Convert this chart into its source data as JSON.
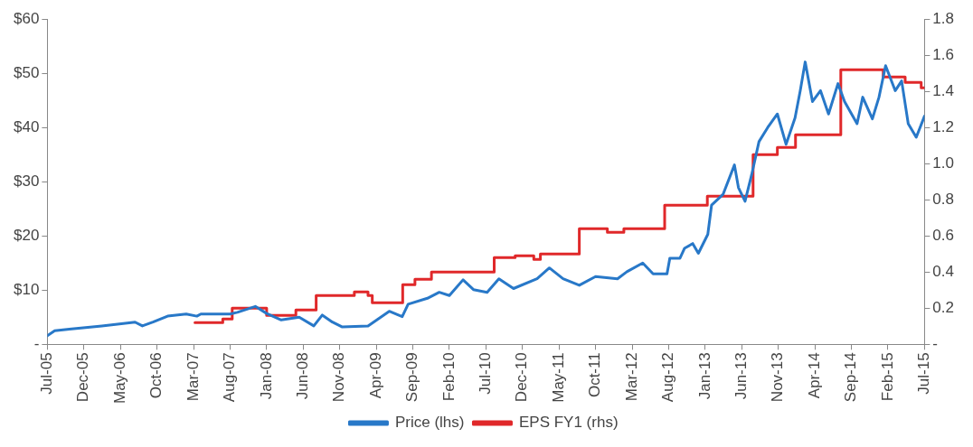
{
  "chart_data": {
    "type": "line",
    "xlim": [
      "2005-07",
      "2015-07"
    ],
    "xticks": [
      {
        "value": "2005-07",
        "label": "Jul-05"
      },
      {
        "value": "2005-12",
        "label": "Dec-05"
      },
      {
        "value": "2006-05",
        "label": "May-06"
      },
      {
        "value": "2006-10",
        "label": "Oct-06"
      },
      {
        "value": "2007-03",
        "label": "Mar-07"
      },
      {
        "value": "2007-08",
        "label": "Aug-07"
      },
      {
        "value": "2008-01",
        "label": "Jan-08"
      },
      {
        "value": "2008-06",
        "label": "Jun-08"
      },
      {
        "value": "2008-11",
        "label": "Nov-08"
      },
      {
        "value": "2009-04",
        "label": "Apr-09"
      },
      {
        "value": "2009-09",
        "label": "Sep-09"
      },
      {
        "value": "2010-02",
        "label": "Feb-10"
      },
      {
        "value": "2010-07",
        "label": "Jul-10"
      },
      {
        "value": "2010-12",
        "label": "Dec-10"
      },
      {
        "value": "2011-05",
        "label": "May-11"
      },
      {
        "value": "2011-10",
        "label": "Oct-11"
      },
      {
        "value": "2012-03",
        "label": "Mar-12"
      },
      {
        "value": "2012-08",
        "label": "Aug-12"
      },
      {
        "value": "2013-01",
        "label": "Jan-13"
      },
      {
        "value": "2013-06",
        "label": "Jun-13"
      },
      {
        "value": "2013-11",
        "label": "Nov-13"
      },
      {
        "value": "2014-04",
        "label": "Apr-14"
      },
      {
        "value": "2014-09",
        "label": "Sep-14"
      },
      {
        "value": "2015-02",
        "label": "Feb-15"
      },
      {
        "value": "2015-07",
        "label": "Jul-15"
      }
    ],
    "ylim": [
      0,
      60
    ],
    "yticks": [
      {
        "value": 0,
        "label": "-"
      },
      {
        "value": 10,
        "label": "$10"
      },
      {
        "value": 20,
        "label": "$20"
      },
      {
        "value": 30,
        "label": "$30"
      },
      {
        "value": 40,
        "label": "$40"
      },
      {
        "value": 50,
        "label": "$50"
      },
      {
        "value": 60,
        "label": "$60"
      }
    ],
    "y2lim": [
      0,
      1.8
    ],
    "y2ticks": [
      {
        "value": 0,
        "label": "-"
      },
      0.2,
      0.4,
      0.6,
      0.8,
      {
        "value": 1,
        "label": "1.0"
      },
      1.2,
      1.4,
      1.6,
      1.8
    ],
    "grid": false,
    "legend": "bottom",
    "marker": "none",
    "line_style": "solid",
    "series": [
      {
        "name": "Price (lhs)",
        "type": "line",
        "color": "#2878c8",
        "x": [
          "2005-07",
          "2005-08",
          "2005-10",
          "2006-02-15",
          "2006-07",
          "2006-08",
          "2006-09-15",
          "2006-11-15",
          "2007-02",
          "2007-03-15",
          "2007-04",
          "2007-08",
          "2007-09",
          "2007-11-15",
          "2008-01",
          "2008-03",
          "2008-05-15",
          "2008-07-15",
          "2008-08-20",
          "2008-10",
          "2008-11-12",
          "2009-02-28",
          "2009-05-25",
          "2009-07-18",
          "2009-08-12",
          "2009-11",
          "2009-12-20",
          "2010-02",
          "2010-03-28",
          "2010-05-10",
          "2010-07-06",
          "2010-08-25",
          "2010-10-25",
          "2011-02",
          "2011-03-22",
          "2011-05-18",
          "2011-07-25",
          "2011-10",
          "2012-01",
          "2012-02-10",
          "2012-04-15",
          "2012-05-28",
          "2012-07-25",
          "2012-08-06",
          "2012-09-18",
          "2012-10-06",
          "2012-11-10",
          "2012-12-03",
          "2013-01-12",
          "2013-01-28",
          "2013-03-15",
          "2013-05",
          "2013-05-18",
          "2013-06-15",
          "2013-07-12",
          "2013-08-12",
          "2013-09-18",
          "2013-10-28",
          "2013-12-03",
          "2014-01-10",
          "2014-02",
          "2014-02-22",
          "2014-03-22",
          "2014-04-25",
          "2014-05-28",
          "2014-07-06",
          "2014-08-03",
          "2014-09-25",
          "2014-10-18",
          "2014-11-28",
          "2014-12-25",
          "2015-01-22",
          "2015-03",
          "2015-03-28",
          "2015-04-25",
          "2015-05-28",
          "2015-07"
        ],
        "values": [
          1.6,
          2.5,
          2.8,
          3.4,
          4.1,
          3.4,
          4.1,
          5.2,
          5.6,
          5.2,
          5.6,
          5.6,
          5.9,
          7.0,
          5.7,
          4.5,
          5.0,
          3.4,
          5.4,
          4.1,
          3.2,
          3.4,
          6.1,
          5.1,
          7.4,
          8.5,
          9.6,
          9.0,
          11.9,
          10.1,
          9.6,
          12.1,
          10.3,
          12.1,
          14.1,
          12.1,
          10.9,
          12.5,
          12.1,
          13.4,
          15.0,
          13.0,
          13.0,
          15.9,
          15.9,
          17.7,
          18.6,
          16.8,
          20.3,
          25.7,
          27.7,
          33.1,
          28.9,
          26.4,
          31.3,
          37.4,
          40.0,
          42.5,
          36.9,
          41.8,
          46.8,
          52.1,
          44.8,
          46.8,
          42.5,
          48.1,
          44.8,
          40.7,
          45.6,
          41.6,
          45.6,
          51.4,
          46.8,
          48.6,
          40.7,
          38.2,
          42.1
        ]
      },
      {
        "name": "EPS FY1 (rhs)",
        "type": "step",
        "axis": "y2",
        "color": "#e0282a",
        "x": [
          "2007-03-07",
          "2007-07",
          "2007-08-10",
          "2008-01",
          "2008-05",
          "2008-07-25",
          "2009-01",
          "2009-02-28",
          "2009-03-15",
          "2009-07-20",
          "2009-09-10",
          "2009-11-18",
          "2010-08-05",
          "2010-11",
          "2011-01-18",
          "2011-02-15",
          "2011-07-25",
          "2011-11-20",
          "2012-01-28",
          "2012-07-15",
          "2013-01-10",
          "2013-07-18",
          "2013-10-28",
          "2014-01-12",
          "2014-07-18",
          "2015-01-12",
          "2015-04-12",
          "2015-06-18",
          "2015-07"
        ],
        "values": [
          0.12,
          0.14,
          0.2,
          0.16,
          0.19,
          0.27,
          0.29,
          0.27,
          0.23,
          0.33,
          0.36,
          0.4,
          0.48,
          0.49,
          0.47,
          0.5,
          0.64,
          0.62,
          0.64,
          0.77,
          0.82,
          1.05,
          1.09,
          1.16,
          1.52,
          1.48,
          1.45,
          1.42,
          1.42
        ]
      }
    ]
  }
}
